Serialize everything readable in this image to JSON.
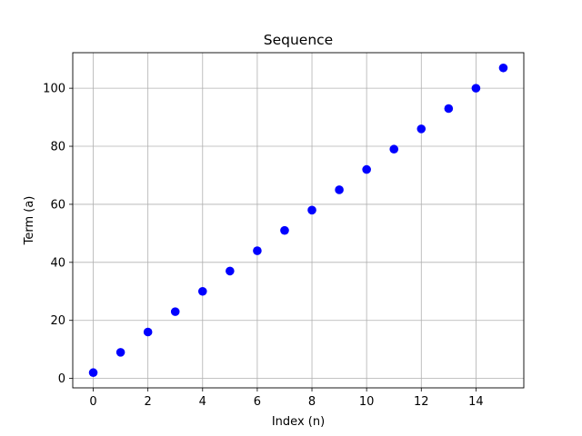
{
  "chart_data": {
    "type": "scatter",
    "title": "Sequence",
    "xlabel": "Index (n)",
    "ylabel": "Term (a)",
    "xlim": [
      -0.75,
      15.75
    ],
    "ylim": [
      -3.25,
      112.25
    ],
    "x_ticks": [
      0,
      2,
      4,
      6,
      8,
      10,
      12,
      14
    ],
    "y_ticks": [
      0,
      20,
      40,
      60,
      80,
      100
    ],
    "grid": true,
    "marker_color": "#0000ff",
    "series": [
      {
        "x": [
          0,
          1,
          2,
          3,
          4,
          5,
          6,
          7,
          8,
          9,
          10,
          11,
          12,
          13,
          14,
          15
        ],
        "y": [
          2,
          9,
          16,
          23,
          30,
          37,
          44,
          51,
          58,
          65,
          72,
          79,
          86,
          93,
          100,
          107
        ]
      }
    ]
  }
}
